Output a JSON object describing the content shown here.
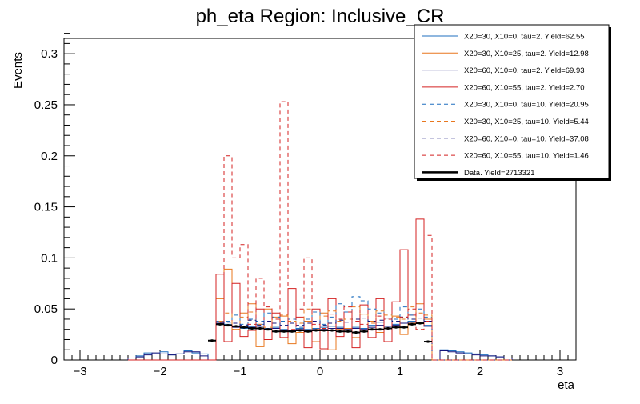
{
  "chart_data": {
    "type": "histogram",
    "title": "ph_eta Region: Inclusive_CR",
    "xlabel": "eta",
    "ylabel": "Events",
    "xlim": [
      -3.2,
      3.2
    ],
    "ylim": [
      0,
      0.315
    ],
    "x_ticks": [
      -3,
      -2,
      -1,
      0,
      1,
      2,
      3
    ],
    "x_tick_labels": [
      "−3",
      "−2",
      "−1",
      "0",
      "1",
      "2",
      "3"
    ],
    "y_ticks": [
      0,
      0.05,
      0.1,
      0.15,
      0.2,
      0.25,
      0.3
    ],
    "y_tick_labels": [
      "0",
      "0.05",
      "0.1",
      "0.15",
      "0.2",
      "0.25",
      "0.3"
    ],
    "bin_edges": [
      -2.4,
      -2.3,
      -2.2,
      -2.1,
      -2.0,
      -1.9,
      -1.8,
      -1.7,
      -1.6,
      -1.5,
      -1.4,
      -1.3,
      -1.2,
      -1.1,
      -1.0,
      -0.9,
      -0.8,
      -0.7,
      -0.6,
      -0.5,
      -0.4,
      -0.3,
      -0.2,
      -0.1,
      0.0,
      0.1,
      0.2,
      0.3,
      0.4,
      0.5,
      0.6,
      0.7,
      0.8,
      0.9,
      1.0,
      1.1,
      1.2,
      1.3,
      1.4,
      1.5,
      1.6,
      1.7,
      1.8,
      1.9,
      2.0,
      2.1,
      2.2,
      2.3,
      2.4
    ],
    "legend_position": "top-right",
    "series": [
      {
        "name": "X20=30, X10=0, tau=2. Yield=62.55",
        "color": "#1f6fbf",
        "dashed": false,
        "values": [
          0.002,
          0.004,
          0.007,
          0.006,
          0.008,
          0.005,
          0.006,
          0.009,
          0.007,
          0.006,
          0,
          0.038,
          0.035,
          0.033,
          0.031,
          0.033,
          0.035,
          0.031,
          0.032,
          0.03,
          0.029,
          0.031,
          0.03,
          0.031,
          0.032,
          0.033,
          0.032,
          0.031,
          0.032,
          0.031,
          0.034,
          0.037,
          0.033,
          0.035,
          0.036,
          0.038,
          0.037,
          0.034,
          0,
          0.01,
          0.009,
          0.008,
          0.007,
          0.006,
          0.005,
          0.004,
          0.003,
          0.002
        ]
      },
      {
        "name": "X20=30, X10=25, tau=2. Yield=12.98",
        "color": "#e8771e",
        "dashed": false,
        "values": [
          0,
          0,
          0,
          0,
          0,
          0,
          0,
          0,
          0,
          0,
          0,
          0.06,
          0.089,
          0.03,
          0.046,
          0.055,
          0.013,
          0.05,
          0.042,
          0.043,
          0.016,
          0.027,
          0.038,
          0.018,
          0.046,
          0.01,
          0.03,
          0.031,
          0.022,
          0.045,
          0.038,
          0.027,
          0.018,
          0.043,
          0.025,
          0.036,
          0.055,
          0.04,
          0,
          0,
          0,
          0,
          0,
          0,
          0,
          0,
          0,
          0
        ]
      },
      {
        "name": "X20=60, X10=0, tau=2. Yield=69.93",
        "color": "#12127a",
        "dashed": false,
        "values": [
          0.002,
          0.003,
          0.005,
          0.007,
          0.006,
          0.005,
          0.006,
          0.008,
          0.008,
          0.004,
          0,
          0.036,
          0.034,
          0.032,
          0.032,
          0.032,
          0.033,
          0.03,
          0.031,
          0.029,
          0.029,
          0.03,
          0.029,
          0.03,
          0.03,
          0.031,
          0.031,
          0.03,
          0.031,
          0.03,
          0.032,
          0.034,
          0.033,
          0.034,
          0.036,
          0.037,
          0.036,
          0.033,
          0,
          0.009,
          0.008,
          0.007,
          0.006,
          0.005,
          0.004,
          0.004,
          0.003,
          0.002
        ]
      },
      {
        "name": "X20=60, X10=55, tau=2. Yield=2.70",
        "color": "#d42020",
        "dashed": false,
        "values": [
          0,
          0,
          0,
          0,
          0,
          0,
          0,
          0,
          0,
          0,
          0,
          0.084,
          0.018,
          0.075,
          0.023,
          0.029,
          0.05,
          0.02,
          0.046,
          0.022,
          0.07,
          0.042,
          0.012,
          0.05,
          0.011,
          0.06,
          0.023,
          0.047,
          0.012,
          0.054,
          0.022,
          0.06,
          0.018,
          0.057,
          0.108,
          0.044,
          0.138,
          0.038,
          0,
          0,
          0,
          0,
          0,
          0,
          0,
          0,
          0,
          0
        ]
      },
      {
        "name": "X20=30, X10=0, tau=10. Yield=20.95",
        "color": "#1f6fbf",
        "dashed": true,
        "values": [
          0,
          0,
          0,
          0,
          0,
          0,
          0,
          0,
          0,
          0,
          0,
          0.037,
          0.038,
          0.044,
          0.035,
          0.04,
          0.038,
          0.046,
          0.042,
          0.038,
          0.04,
          0.032,
          0.04,
          0.047,
          0.035,
          0.042,
          0.055,
          0.047,
          0.062,
          0.058,
          0.05,
          0.046,
          0.049,
          0.04,
          0.052,
          0.044,
          0.05,
          0.042,
          0,
          0,
          0,
          0,
          0,
          0,
          0,
          0,
          0,
          0
        ]
      },
      {
        "name": "X20=30, X10=25, tau=10. Yield=5.44",
        "color": "#e8771e",
        "dashed": true,
        "values": [
          0,
          0,
          0,
          0,
          0,
          0,
          0,
          0,
          0,
          0,
          0,
          0.038,
          0.046,
          0.03,
          0.042,
          0.047,
          0.035,
          0.032,
          0.04,
          0.044,
          0.038,
          0.036,
          0.05,
          0.03,
          0.043,
          0.048,
          0.038,
          0.04,
          0.052,
          0.045,
          0.036,
          0.048,
          0.044,
          0.042,
          0.04,
          0.052,
          0.046,
          0.044,
          0,
          0,
          0,
          0,
          0,
          0,
          0,
          0,
          0,
          0
        ]
      },
      {
        "name": "X20=60, X10=0, tau=10. Yield=37.08",
        "color": "#12127a",
        "dashed": true,
        "values": [
          0,
          0,
          0,
          0,
          0,
          0,
          0,
          0,
          0,
          0,
          0,
          0.035,
          0.037,
          0.036,
          0.034,
          0.039,
          0.034,
          0.038,
          0.036,
          0.034,
          0.036,
          0.034,
          0.036,
          0.038,
          0.034,
          0.036,
          0.039,
          0.037,
          0.04,
          0.041,
          0.038,
          0.039,
          0.041,
          0.038,
          0.042,
          0.04,
          0.041,
          0.038,
          0,
          0,
          0,
          0,
          0,
          0,
          0,
          0,
          0,
          0
        ]
      },
      {
        "name": "X20=60, X10=55, tau=10. Yield=1.46",
        "color": "#d42020",
        "dashed": true,
        "values": [
          0,
          0,
          0,
          0,
          0,
          0,
          0,
          0,
          0,
          0,
          0,
          0.037,
          0.2,
          0.1,
          0.113,
          0.035,
          0.08,
          0.052,
          0.04,
          0.253,
          0.03,
          0.05,
          0.1,
          0.035,
          0.031,
          0.045,
          0.04,
          0.052,
          0.038,
          0.035,
          0.03,
          0.043,
          0.04,
          0.032,
          0.042,
          0.05,
          0.03,
          0.122,
          0,
          0,
          0,
          0,
          0,
          0,
          0,
          0,
          0,
          0
        ]
      }
    ],
    "data_series": {
      "name": "Data. Yield=2713321",
      "color": "#000000",
      "x": [
        -1.35,
        -1.25,
        -1.15,
        -1.05,
        -0.95,
        -0.85,
        -0.75,
        -0.65,
        -0.55,
        -0.45,
        -0.35,
        -0.25,
        -0.15,
        -0.05,
        0.05,
        0.15,
        0.25,
        0.35,
        0.45,
        0.55,
        0.65,
        0.75,
        0.85,
        0.95,
        1.05,
        1.15,
        1.25,
        1.35
      ],
      "y": [
        0.019,
        0.035,
        0.034,
        0.033,
        0.032,
        0.031,
        0.031,
        0.03,
        0.028,
        0.028,
        0.028,
        0.029,
        0.028,
        0.029,
        0.029,
        0.029,
        0.028,
        0.028,
        0.027,
        0.028,
        0.03,
        0.03,
        0.031,
        0.032,
        0.032,
        0.035,
        0.036,
        0.018
      ]
    }
  }
}
